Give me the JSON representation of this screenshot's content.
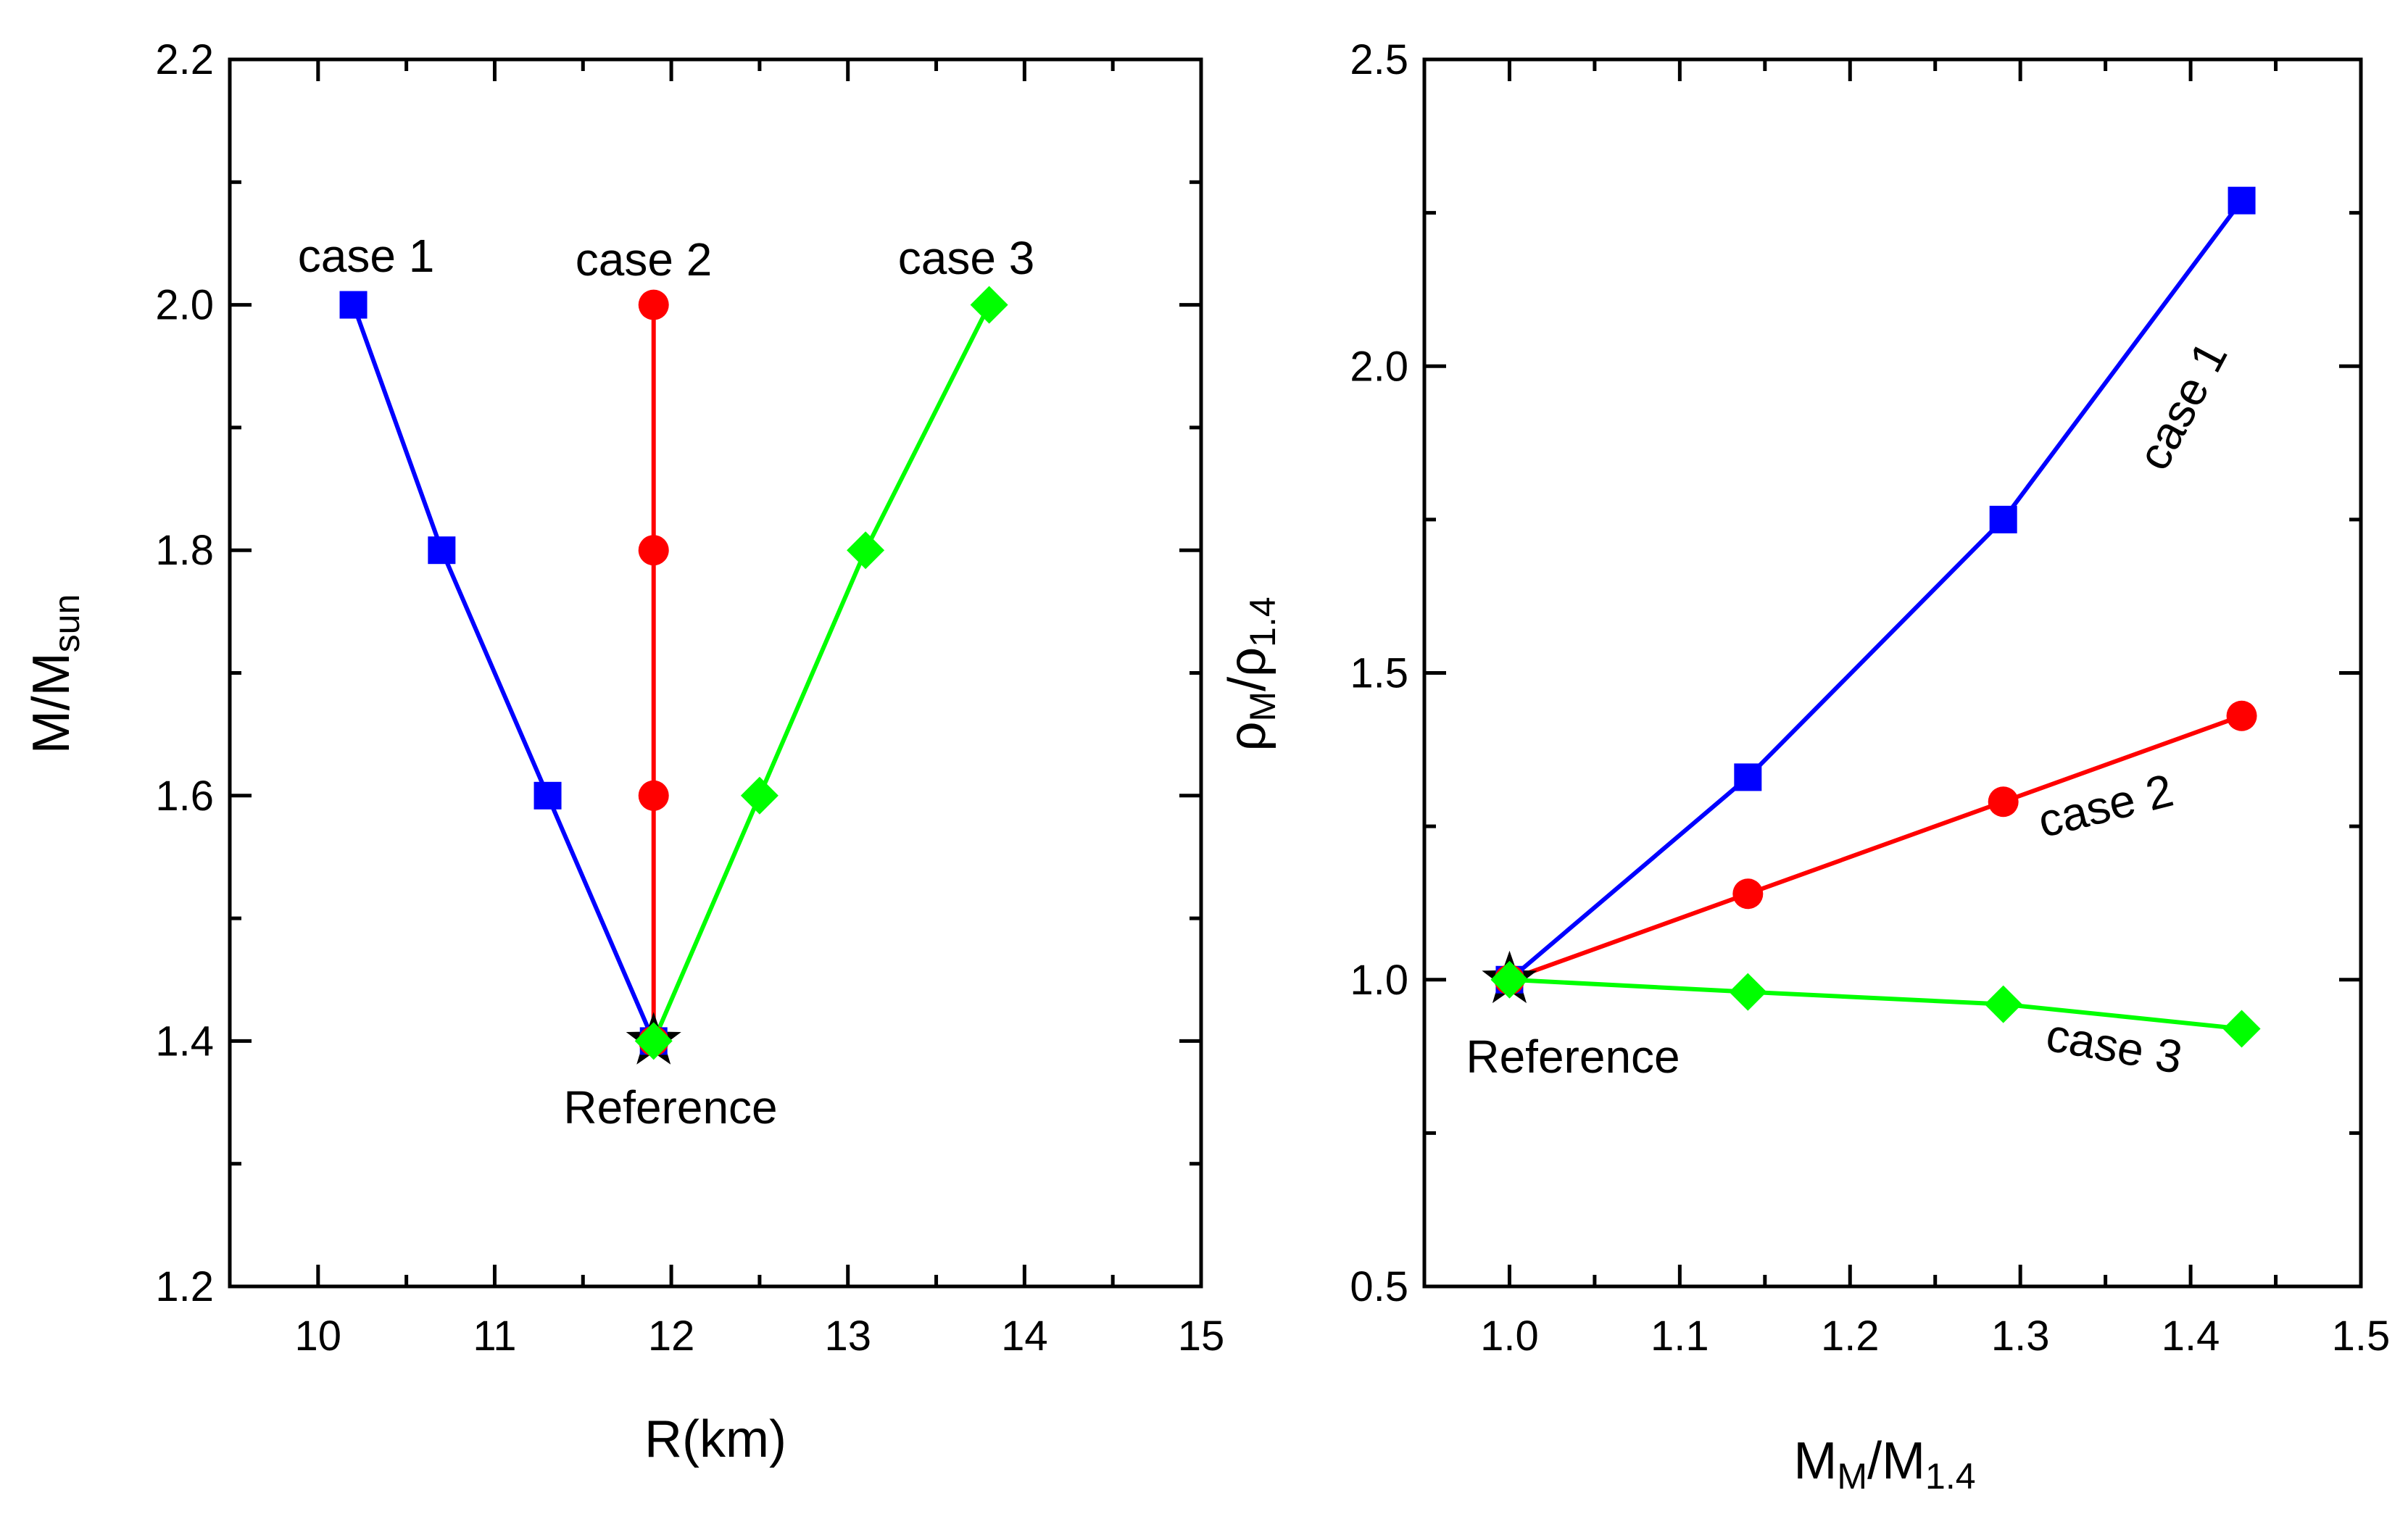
{
  "chart_data": [
    {
      "type": "line",
      "xlim": [
        9.5,
        15
      ],
      "ylim": [
        1.2,
        2.2
      ],
      "xticks": [
        10,
        11,
        12,
        13,
        14,
        15
      ],
      "yticks": [
        1.2,
        1.4,
        1.6,
        1.8,
        2.0,
        2.2
      ],
      "xtick_labels": [
        "10",
        "11",
        "12",
        "13",
        "14",
        "15"
      ],
      "ytick_labels": [
        "1.2",
        "1.4",
        "1.6",
        "1.8",
        "2.0",
        "2.2"
      ],
      "xlabel": "R(km)",
      "ylabel": {
        "main": "M/M",
        "sub": "sun"
      },
      "series": [
        {
          "name": "case 1",
          "color": "#0000ff",
          "marker": "square",
          "x": [
            11.9,
            11.3,
            10.7,
            10.2
          ],
          "y": [
            1.4,
            1.6,
            1.8,
            2.0
          ]
        },
        {
          "name": "case 2",
          "color": "#ff0000",
          "marker": "circle",
          "x": [
            11.9,
            11.9,
            11.9,
            11.9
          ],
          "y": [
            1.4,
            1.6,
            1.8,
            2.0
          ]
        },
        {
          "name": "case 3",
          "color": "#00ff00",
          "marker": "diamond",
          "x": [
            11.9,
            12.5,
            13.1,
            13.8
          ],
          "y": [
            1.4,
            1.6,
            1.8,
            2.0
          ]
        }
      ],
      "reference": {
        "x": 11.9,
        "y": 1.4,
        "label": "Reference"
      },
      "annotations": [
        "case 1",
        "case 2",
        "case 3"
      ]
    },
    {
      "type": "line",
      "xlim": [
        0.95,
        1.5
      ],
      "ylim": [
        0.5,
        2.5
      ],
      "xticks": [
        1.0,
        1.1,
        1.2,
        1.3,
        1.4,
        1.5
      ],
      "yticks": [
        0.5,
        1.0,
        1.5,
        2.0,
        2.5
      ],
      "xtick_labels": [
        "1.0",
        "1.1",
        "1.2",
        "1.3",
        "1.4",
        "1.5"
      ],
      "ytick_labels": [
        "0.5",
        "1.0",
        "1.5",
        "2.0",
        "2.5"
      ],
      "xlabel": {
        "main": "M",
        "sub1": "M",
        "mid": "/M",
        "sub2": "1.4"
      },
      "ylabel": {
        "main": "ρ",
        "sub1": "M",
        "mid": "/ρ",
        "sub2": "1.4"
      },
      "series": [
        {
          "name": "case 1",
          "color": "#0000ff",
          "marker": "square",
          "x": [
            1.0,
            1.14,
            1.29,
            1.43
          ],
          "y": [
            1.0,
            1.33,
            1.75,
            2.27
          ]
        },
        {
          "name": "case 2",
          "color": "#ff0000",
          "marker": "circle",
          "x": [
            1.0,
            1.14,
            1.29,
            1.43
          ],
          "y": [
            1.0,
            1.14,
            1.29,
            1.43
          ]
        },
        {
          "name": "case 3",
          "color": "#00ff00",
          "marker": "diamond",
          "x": [
            1.0,
            1.14,
            1.29,
            1.43
          ],
          "y": [
            1.0,
            0.98,
            0.96,
            0.92
          ]
        }
      ],
      "reference": {
        "x": 1.0,
        "y": 1.0,
        "label": "Reference"
      },
      "annotations": [
        "case 1",
        "case 2",
        "case 3"
      ]
    }
  ]
}
